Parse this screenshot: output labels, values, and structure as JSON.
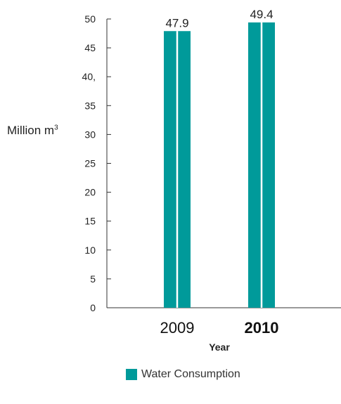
{
  "chart_data": {
    "type": "bar",
    "categories": [
      "2009",
      "2010"
    ],
    "series": [
      {
        "name": "Water Consumption",
        "values": [
          47.9,
          49.4
        ],
        "color": "#009a9a"
      }
    ],
    "data_labels": [
      "47.9",
      "49.4"
    ],
    "xlabel": "Year",
    "ylabel": "Million m",
    "ylabel_superscript": "3",
    "ylim": [
      0,
      50
    ],
    "y_ticks": [
      {
        "value": 0,
        "label": "0"
      },
      {
        "value": 5,
        "label": "5"
      },
      {
        "value": 10,
        "label": "10"
      },
      {
        "value": 15,
        "label": "15"
      },
      {
        "value": 20,
        "label": "20"
      },
      {
        "value": 25,
        "label": "25"
      },
      {
        "value": 30,
        "label": "30"
      },
      {
        "value": 35,
        "label": "35"
      },
      {
        "value": 40,
        "label": "40,"
      },
      {
        "value": 45,
        "label": "45"
      },
      {
        "value": 50,
        "label": "50"
      }
    ],
    "bold_category": "2010",
    "grid": false,
    "legend_position": "bottom-center"
  }
}
